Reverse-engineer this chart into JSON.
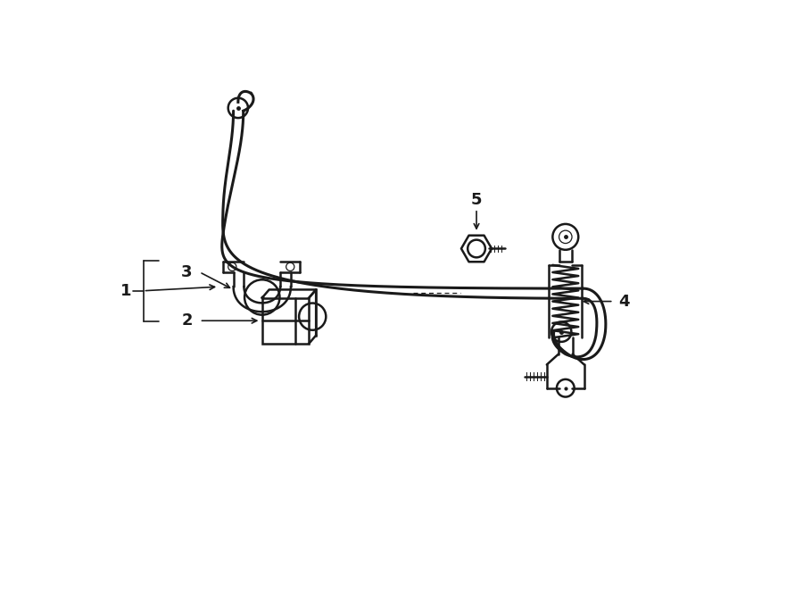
{
  "bg_color": "#ffffff",
  "line_color": "#1a1a1a",
  "line_width": 1.8,
  "fig_width": 9.0,
  "fig_height": 6.62,
  "label_fontsize": 13
}
